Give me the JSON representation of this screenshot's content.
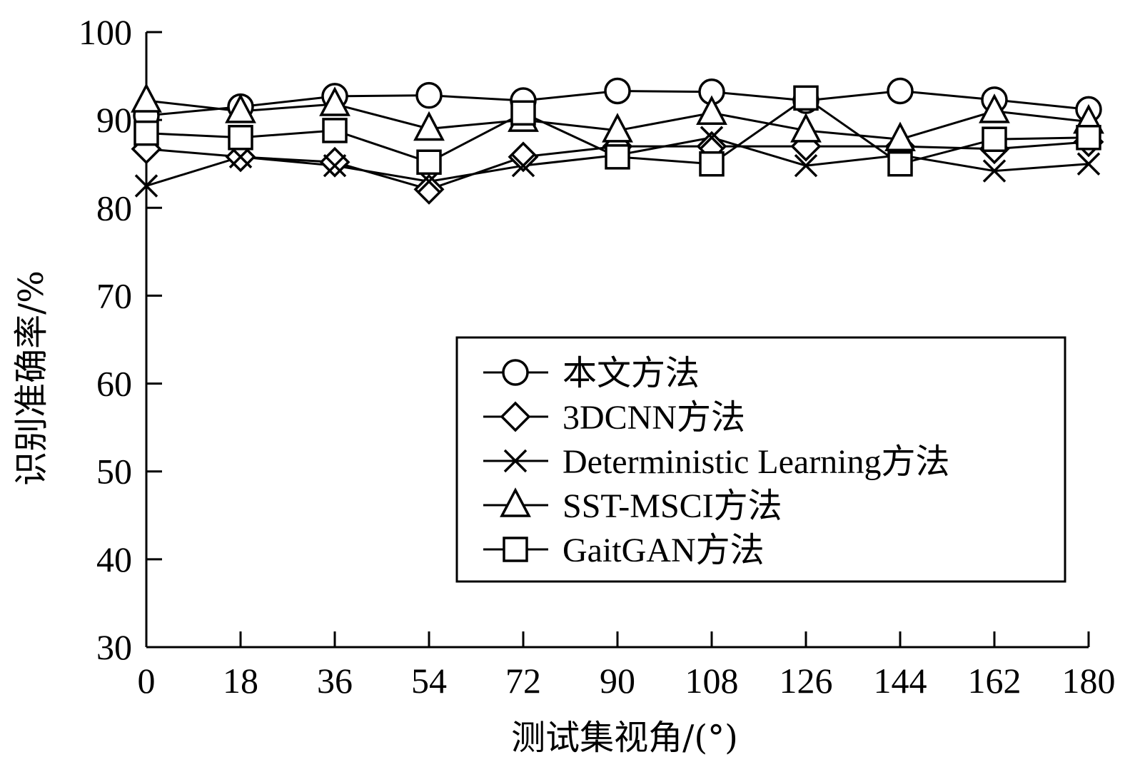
{
  "chart_data": {
    "type": "line",
    "xlabel": "测试集视角/(°)",
    "ylabel": "识别准确率/%",
    "x": [
      0,
      18,
      36,
      54,
      72,
      90,
      108,
      126,
      144,
      162,
      180
    ],
    "xlim": [
      0,
      180
    ],
    "ylim": [
      30,
      100
    ],
    "xticks": [
      "0",
      "18",
      "36",
      "54",
      "72",
      "90",
      "108",
      "126",
      "144",
      "162",
      "180"
    ],
    "yticks": [
      "30",
      "40",
      "50",
      "60",
      "70",
      "80",
      "90",
      "100"
    ],
    "grid": false,
    "legend_position": "center-right",
    "series": [
      {
        "name": "本文方法",
        "marker": "circle",
        "values": [
          90.5,
          91.5,
          92.7,
          92.8,
          92.2,
          93.3,
          93.2,
          92.2,
          93.3,
          92.3,
          91.2
        ]
      },
      {
        "name": "3DCNN方法",
        "marker": "diamond",
        "values": [
          86.7,
          85.8,
          85.2,
          82.1,
          85.8,
          87.0,
          87.0,
          87.0,
          87.0,
          86.7,
          87.5
        ]
      },
      {
        "name": "Deterministic Learning方法",
        "marker": "x",
        "values": [
          82.5,
          85.8,
          84.8,
          83.0,
          84.8,
          86.0,
          88.0,
          84.8,
          86.0,
          84.2,
          85.0
        ]
      },
      {
        "name": "SST-MSCI方法",
        "marker": "triangle",
        "values": [
          92.2,
          91.0,
          91.8,
          89.0,
          90.0,
          88.8,
          90.8,
          88.8,
          87.8,
          91.0,
          89.8
        ]
      },
      {
        "name": "GaitGAN方法",
        "marker": "square",
        "values": [
          88.5,
          88.0,
          88.8,
          85.2,
          90.8,
          85.8,
          85.0,
          92.5,
          85.0,
          87.8,
          88.0
        ]
      }
    ],
    "colors": {
      "line": "#000000",
      "background": "#ffffff"
    }
  }
}
